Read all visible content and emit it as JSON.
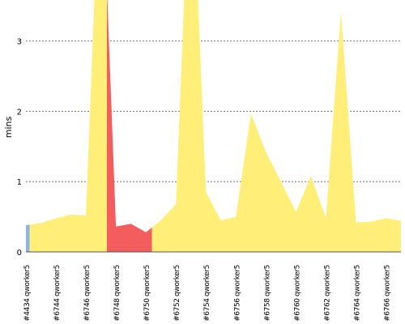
{
  "chart_data": {
    "type": "area",
    "ylabel": "mins",
    "ylim": [
      0,
      3.6
    ],
    "yticks": [
      0,
      1,
      2,
      3
    ],
    "grid": true,
    "xticks": [
      "#4434 qworker5",
      "#6744 qworker5",
      "#6746 qworker5",
      "#6748 qworker5",
      "#6750 qworker5",
      "#6752 qworker5",
      "#6754 qworker5",
      "#6756 qworker5",
      "#6758 qworker5",
      "#6760 qworker5",
      "#6762 qworker5",
      "#6764 qworker5",
      "#6766 qworker5"
    ],
    "x": [
      0,
      0.5,
      1,
      1.5,
      2,
      2.5,
      3,
      3.5,
      4,
      4.5,
      5,
      5.5,
      6,
      6.5,
      7,
      7.5,
      8,
      8.5,
      9,
      9.5,
      10,
      10.5,
      11,
      11.5,
      12,
      12.5
    ],
    "values": [
      0.38,
      0.41,
      0.48,
      0.53,
      0.52,
      6.0,
      0.36,
      0.4,
      0.28,
      0.45,
      0.68,
      6.0,
      0.85,
      0.45,
      0.5,
      1.97,
      1.42,
      1.0,
      0.57,
      1.08,
      0.48,
      3.42,
      0.42,
      0.43,
      0.48,
      0.44
    ],
    "segments": [
      {
        "from": 0,
        "to": 0.125,
        "color": "#8fb4e3"
      },
      {
        "from": 0.125,
        "to": 2.7,
        "color": "#ffef78"
      },
      {
        "from": 2.7,
        "to": 4.2,
        "color": "#f45d5d"
      },
      {
        "from": 4.2,
        "to": 12.5,
        "color": "#ffef78"
      }
    ]
  }
}
